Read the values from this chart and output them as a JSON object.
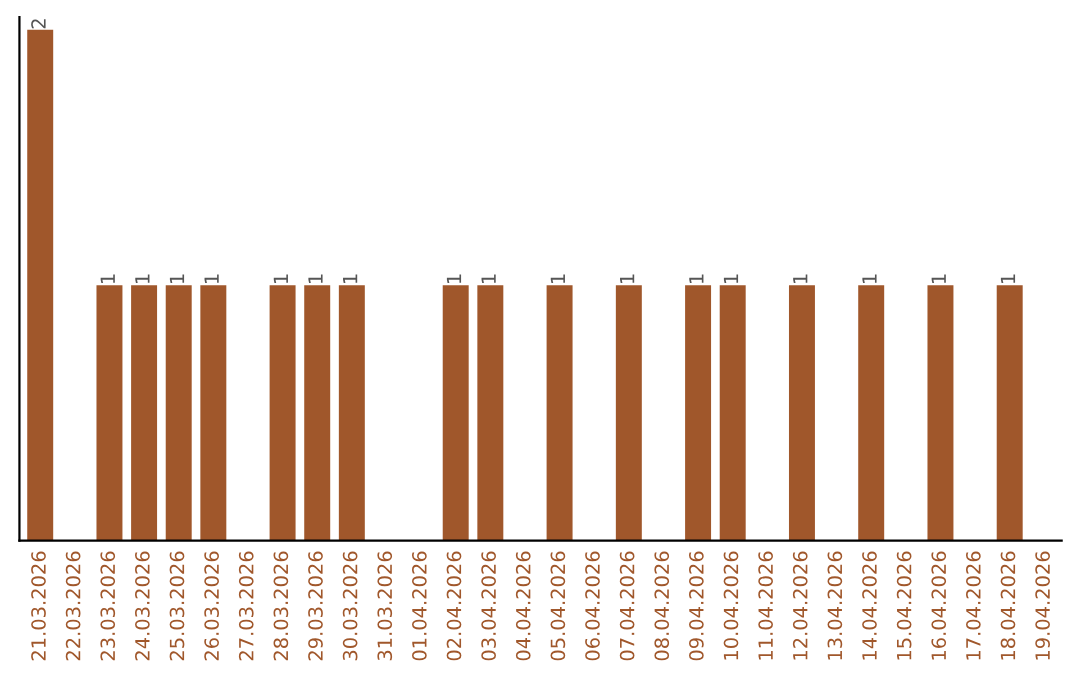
{
  "chart_data": {
    "type": "bar",
    "categories": [
      "21.03.2026",
      "22.03.2026",
      "23.03.2026",
      "24.03.2026",
      "25.03.2026",
      "26.03.2026",
      "27.03.2026",
      "28.03.2026",
      "29.03.2026",
      "30.03.2026",
      "31.03.2026",
      "01.04.2026",
      "02.04.2026",
      "03.04.2026",
      "04.04.2026",
      "05.04.2026",
      "06.04.2026",
      "07.04.2026",
      "08.04.2026",
      "09.04.2026",
      "10.04.2026",
      "11.04.2026",
      "12.04.2026",
      "13.04.2026",
      "14.04.2026",
      "15.04.2026",
      "16.04.2026",
      "17.04.2026",
      "18.04.2026",
      "19.04.2026"
    ],
    "values": [
      2,
      0,
      1,
      1,
      1,
      1,
      0,
      1,
      1,
      1,
      0,
      0,
      1,
      1,
      0,
      1,
      0,
      1,
      0,
      1,
      1,
      0,
      1,
      0,
      1,
      0,
      1,
      0,
      1,
      0
    ],
    "value_labels": [
      "2",
      null,
      "1",
      "1",
      "1",
      "1",
      null,
      "1",
      "1",
      "1",
      null,
      null,
      "1",
      "1",
      null,
      "1",
      null,
      "1",
      null,
      "1",
      "1",
      null,
      "1",
      null,
      "1",
      null,
      "1",
      null,
      "1",
      null
    ],
    "color": "#a0572b",
    "tick_labels": "x",
    "grid": false,
    "legend": false
  }
}
